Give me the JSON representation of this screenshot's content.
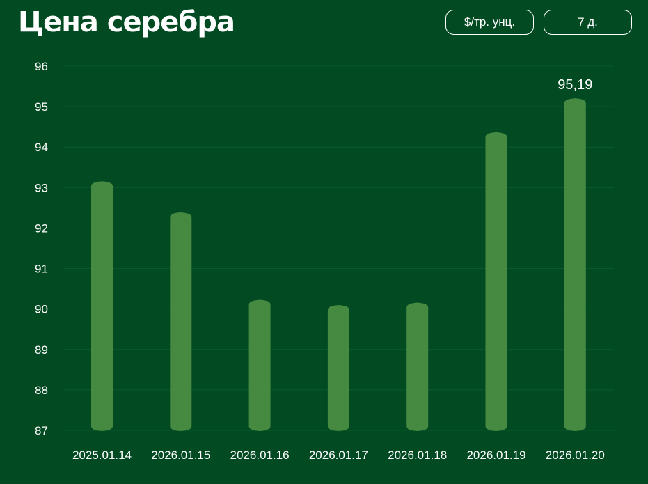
{
  "header": {
    "title": "Цена серебра",
    "unit_label": "$/тр. унц.",
    "range_label": "7 д."
  },
  "colors": {
    "background": "#024a22",
    "bar": "#458a40",
    "grid": "#0b5a2c"
  },
  "chart_data": {
    "type": "bar",
    "title": "Цена серебра",
    "xlabel": "",
    "ylabel": "",
    "ylim": [
      87,
      96
    ],
    "yticks": [
      87,
      88,
      89,
      90,
      91,
      92,
      93,
      94,
      95,
      96
    ],
    "grid": true,
    "categories": [
      "2025.01.14",
      "2026.01.15",
      "2026.01.16",
      "2026.01.17",
      "2026.01.18",
      "2026.01.19",
      "2026.01.20"
    ],
    "values": [
      93.14,
      92.37,
      90.21,
      90.08,
      90.14,
      94.35,
      95.19
    ],
    "annotations": [
      {
        "category": "2026.01.20",
        "text": "95,19"
      }
    ]
  }
}
